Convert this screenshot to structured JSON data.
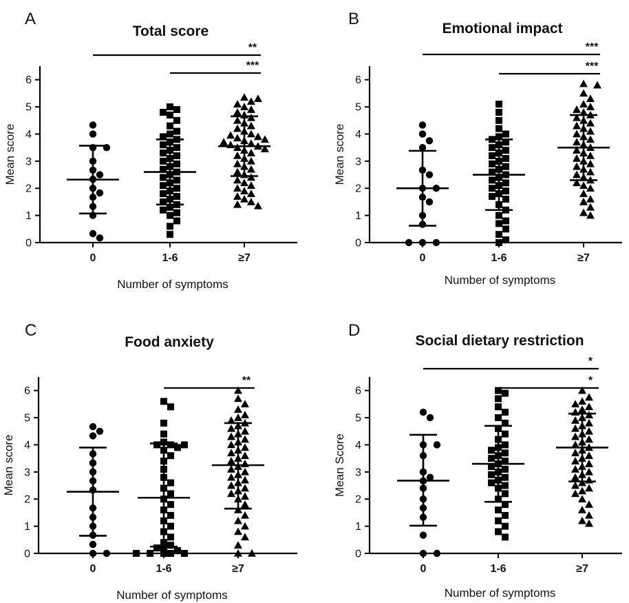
{
  "chart_data": [
    {
      "type": "scatter",
      "panel_label": "A",
      "title": "Total score",
      "xlabel": "Number of symptoms",
      "ylabel": "Mean score",
      "ylim": [
        0,
        6.5
      ],
      "yticks": [
        "0",
        "1",
        "2",
        "3",
        "4",
        "5",
        "6"
      ],
      "categories": [
        "0",
        "1-6",
        "≥7"
      ],
      "markers": [
        "circle",
        "square",
        "triangle"
      ],
      "groups": [
        {
          "category": "0",
          "mean": 2.32,
          "sd_low": 1.07,
          "sd_high": 3.57,
          "points": [
            4.33,
            4.0,
            3.5,
            3.5,
            3.0,
            2.67,
            2.5,
            2.33,
            2.0,
            1.83,
            1.67,
            1.33,
            1.0,
            0.33,
            0.17
          ]
        },
        {
          "category": "1-6",
          "mean": 2.6,
          "sd_low": 1.4,
          "sd_high": 3.8,
          "points": [
            5.0,
            4.9,
            4.8,
            4.7,
            4.5,
            4.3,
            4.1,
            4.0,
            3.9,
            3.8,
            3.7,
            3.6,
            3.5,
            3.4,
            3.3,
            3.2,
            3.1,
            3.0,
            2.9,
            2.8,
            2.7,
            2.6,
            2.5,
            2.4,
            2.3,
            2.2,
            2.1,
            2.0,
            1.9,
            1.8,
            1.7,
            1.6,
            1.5,
            1.4,
            1.3,
            1.2,
            1.1,
            1.0,
            0.8,
            0.6,
            0.3
          ]
        },
        {
          "category": "≥7",
          "mean": 3.55,
          "sd_low": 2.45,
          "sd_high": 4.65,
          "points": [
            5.35,
            5.3,
            5.2,
            5.1,
            5.0,
            4.9,
            4.8,
            4.7,
            4.6,
            4.5,
            4.4,
            4.3,
            4.2,
            4.1,
            4.0,
            3.95,
            3.9,
            3.85,
            3.8,
            3.75,
            3.7,
            3.65,
            3.6,
            3.55,
            3.5,
            3.45,
            3.4,
            3.3,
            3.2,
            3.1,
            3.0,
            2.9,
            2.8,
            2.7,
            2.6,
            2.5,
            2.4,
            2.3,
            2.2,
            2.1,
            2.0,
            1.9,
            1.8,
            1.7,
            1.6,
            1.5,
            1.4,
            1.35
          ]
        }
      ],
      "significance": [
        {
          "from": "0",
          "to": "≥7",
          "label": "**"
        },
        {
          "from": "1-6",
          "to": "≥7",
          "label": "***"
        }
      ]
    },
    {
      "type": "scatter",
      "panel_label": "B",
      "title": "Emotional impact",
      "xlabel": "Number of symptoms",
      "ylabel": "Mean score",
      "ylim": [
        0,
        6.5
      ],
      "yticks": [
        "0",
        "1",
        "2",
        "3",
        "4",
        "5",
        "6"
      ],
      "categories": [
        "0",
        "1-6",
        "≥7"
      ],
      "markers": [
        "circle",
        "square",
        "triangle"
      ],
      "groups": [
        {
          "category": "0",
          "mean": 2.0,
          "sd_low": 0.62,
          "sd_high": 3.38,
          "points": [
            4.33,
            4.0,
            3.75,
            3.5,
            2.67,
            2.5,
            2.0,
            2.0,
            1.67,
            1.5,
            1.0,
            0.67,
            0.0,
            0.0,
            0.0
          ]
        },
        {
          "category": "1-6",
          "mean": 2.5,
          "sd_low": 1.2,
          "sd_high": 3.8,
          "points": [
            5.1,
            4.8,
            4.5,
            4.2,
            4.0,
            3.9,
            3.8,
            3.7,
            3.6,
            3.5,
            3.4,
            3.3,
            3.2,
            3.1,
            3.0,
            2.9,
            2.8,
            2.7,
            2.6,
            2.5,
            2.4,
            2.3,
            2.2,
            2.1,
            2.0,
            1.9,
            1.8,
            1.7,
            1.6,
            1.4,
            1.2,
            1.0,
            0.8,
            0.7,
            0.5,
            0.3,
            0.1,
            0.0
          ]
        },
        {
          "category": "≥7",
          "mean": 3.5,
          "sd_low": 2.3,
          "sd_high": 4.7,
          "points": [
            5.85,
            5.8,
            5.5,
            5.3,
            5.1,
            5.0,
            4.9,
            4.8,
            4.7,
            4.6,
            4.5,
            4.4,
            4.3,
            4.2,
            4.1,
            4.0,
            3.9,
            3.8,
            3.7,
            3.6,
            3.5,
            3.4,
            3.3,
            3.2,
            3.1,
            3.0,
            2.9,
            2.8,
            2.7,
            2.6,
            2.5,
            2.4,
            2.3,
            2.2,
            2.1,
            2.0,
            1.8,
            1.6,
            1.5,
            1.3,
            1.1,
            1.0
          ]
        }
      ],
      "significance": [
        {
          "from": "0",
          "to": "≥7",
          "label": "***"
        },
        {
          "from": "1-6",
          "to": "≥7",
          "label": "***"
        }
      ]
    },
    {
      "type": "scatter",
      "panel_label": "C",
      "title": "Food anxiety",
      "xlabel": "Number of symptoms",
      "ylabel": "Mean score",
      "ylim": [
        0,
        6.5
      ],
      "yticks": [
        "0",
        "1",
        "2",
        "3",
        "4",
        "5",
        "6"
      ],
      "categories": [
        "0",
        "1-6",
        "≥7"
      ],
      "markers": [
        "circle",
        "square",
        "triangle"
      ],
      "groups": [
        {
          "category": "0",
          "mean": 2.27,
          "sd_low": 0.65,
          "sd_high": 3.9,
          "points": [
            4.67,
            4.5,
            4.33,
            3.67,
            3.33,
            3.0,
            2.67,
            2.33,
            1.67,
            1.33,
            1.0,
            0.67,
            0.33,
            0.0,
            0.0
          ]
        },
        {
          "category": "1-6",
          "mean": 2.05,
          "sd_low": 0.25,
          "sd_high": 4.05,
          "points": [
            5.6,
            5.4,
            4.8,
            4.4,
            4.1,
            4.0,
            4.0,
            4.0,
            3.9,
            3.8,
            3.6,
            3.4,
            3.1,
            2.8,
            2.6,
            2.4,
            2.2,
            2.0,
            1.8,
            1.6,
            1.4,
            1.2,
            1.0,
            0.8,
            0.6,
            0.4,
            0.3,
            0.2,
            0.1,
            0.1,
            0.0,
            0.0,
            0.0,
            0.0,
            0.0
          ]
        },
        {
          "category": "≥7",
          "mean": 3.25,
          "sd_low": 1.65,
          "sd_high": 4.8,
          "points": [
            6.0,
            5.7,
            5.5,
            5.3,
            5.1,
            5.0,
            4.9,
            4.8,
            4.7,
            4.6,
            4.5,
            4.4,
            4.3,
            4.2,
            4.1,
            4.0,
            3.9,
            3.8,
            3.7,
            3.6,
            3.5,
            3.4,
            3.3,
            3.2,
            3.1,
            3.0,
            2.9,
            2.8,
            2.7,
            2.6,
            2.5,
            2.4,
            2.3,
            2.2,
            2.1,
            2.0,
            1.8,
            1.6,
            1.4,
            1.2,
            1.0,
            0.8,
            0.6,
            0.3,
            0.0,
            0.0
          ]
        }
      ],
      "significance": [
        {
          "from": "1-6",
          "to": "≥7",
          "label": "**"
        }
      ]
    },
    {
      "type": "scatter",
      "panel_label": "D",
      "title": "Social dietary restriction",
      "xlabel": "Number of symptoms",
      "ylabel": "Mean Score",
      "ylim": [
        0,
        6.5
      ],
      "yticks": [
        "0",
        "1",
        "2",
        "3",
        "4",
        "5",
        "6"
      ],
      "categories": [
        "0",
        "1-6",
        "≥7"
      ],
      "markers": [
        "circle",
        "square",
        "triangle"
      ],
      "groups": [
        {
          "category": "0",
          "mean": 2.68,
          "sd_low": 1.02,
          "sd_high": 4.37,
          "points": [
            5.2,
            5.0,
            4.0,
            4.0,
            3.6,
            3.0,
            2.8,
            2.67,
            2.4,
            2.0,
            1.67,
            1.33,
            0.67,
            0.0,
            0.0
          ]
        },
        {
          "category": "1-6",
          "mean": 3.3,
          "sd_low": 1.9,
          "sd_high": 4.7,
          "points": [
            6.0,
            5.9,
            5.7,
            5.4,
            5.2,
            5.0,
            4.8,
            4.6,
            4.4,
            4.2,
            4.0,
            3.9,
            3.8,
            3.7,
            3.6,
            3.5,
            3.4,
            3.3,
            3.2,
            3.1,
            3.0,
            2.9,
            2.8,
            2.7,
            2.6,
            2.5,
            2.4,
            2.2,
            2.0,
            1.8,
            1.6,
            1.4,
            1.2,
            1.0,
            0.8,
            0.6
          ]
        },
        {
          "category": "≥7",
          "mean": 3.9,
          "sd_low": 2.65,
          "sd_high": 5.15,
          "points": [
            6.0,
            5.75,
            5.6,
            5.5,
            5.4,
            5.3,
            5.2,
            5.1,
            5.0,
            4.9,
            4.8,
            4.7,
            4.6,
            4.5,
            4.4,
            4.3,
            4.2,
            4.1,
            4.0,
            3.9,
            3.8,
            3.7,
            3.6,
            3.5,
            3.4,
            3.3,
            3.2,
            3.1,
            3.0,
            2.9,
            2.8,
            2.7,
            2.6,
            2.5,
            2.4,
            2.3,
            2.2,
            2.0,
            1.8,
            1.6,
            1.4,
            1.2,
            1.1
          ]
        }
      ],
      "significance": [
        {
          "from": "0",
          "to": "≥7",
          "label": "*"
        },
        {
          "from": "1-6",
          "to": "≥7",
          "label": "*"
        }
      ]
    }
  ]
}
